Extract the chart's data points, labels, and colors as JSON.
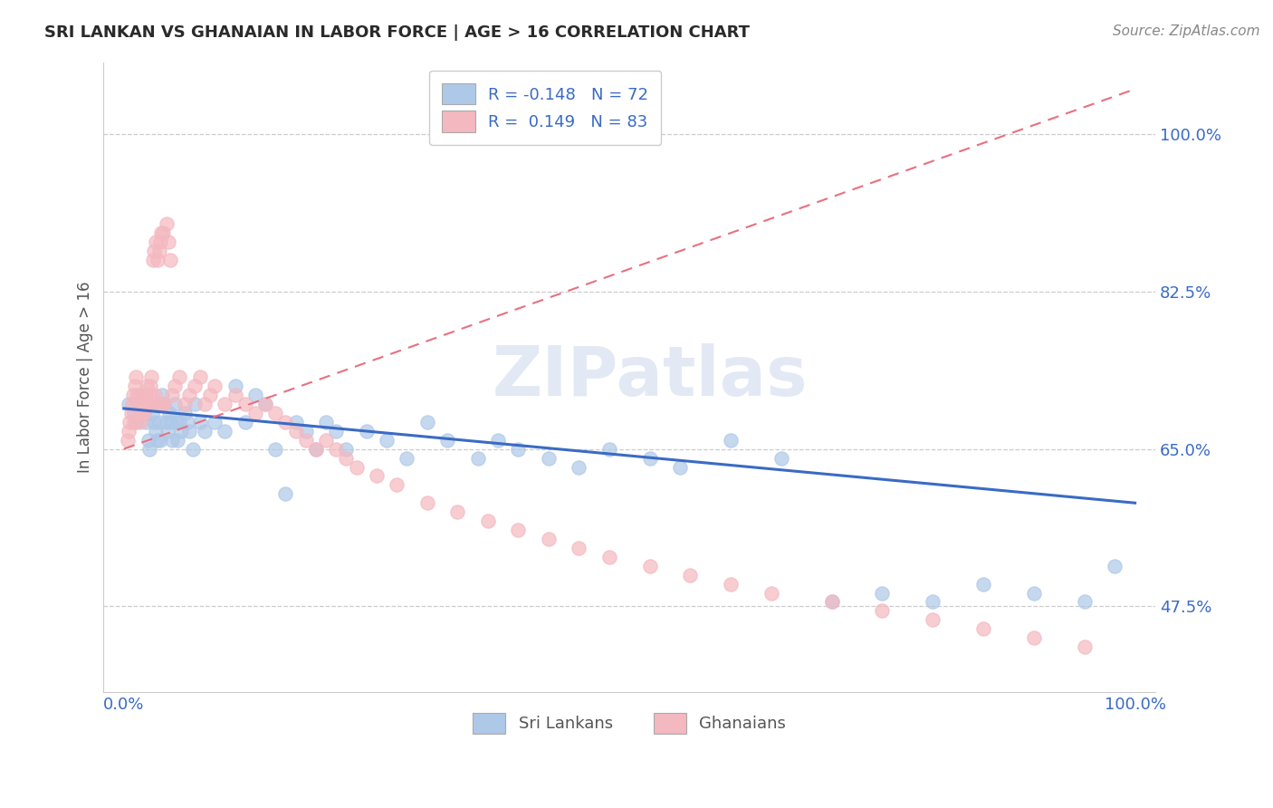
{
  "title": "SRI LANKAN VS GHANAIAN IN LABOR FORCE | AGE > 16 CORRELATION CHART",
  "source_text": "Source: ZipAtlas.com",
  "ylabel": "In Labor Force | Age > 16",
  "xlim": [
    -0.02,
    1.02
  ],
  "ylim": [
    0.38,
    1.08
  ],
  "sri_lankan_color": "#aec8e8",
  "ghanaian_color": "#f4b8c0",
  "sri_lankan_trend_color": "#3a6bc4",
  "ghanaian_trend_color": "#e87080",
  "watermark": "ZIPatlas",
  "sri_lankan_R": -0.148,
  "sri_lankan_N": 72,
  "ghanaian_R": 0.149,
  "ghanaian_N": 83,
  "yticks": [
    0.475,
    0.65,
    0.825,
    1.0
  ],
  "ytick_labels": [
    "47.5%",
    "65.0%",
    "82.5%",
    "100.0%"
  ],
  "xticks": [
    0.0,
    1.0
  ],
  "xtick_labels": [
    "0.0%",
    "100.0%"
  ],
  "sri_lankan_x": [
    0.005,
    0.01,
    0.012,
    0.015,
    0.018,
    0.02,
    0.022,
    0.024,
    0.025,
    0.027,
    0.028,
    0.03,
    0.032,
    0.033,
    0.034,
    0.035,
    0.036,
    0.038,
    0.04,
    0.042,
    0.043,
    0.045,
    0.047,
    0.048,
    0.05,
    0.052,
    0.053,
    0.055,
    0.057,
    0.06,
    0.063,
    0.065,
    0.068,
    0.07,
    0.075,
    0.08,
    0.09,
    0.1,
    0.11,
    0.12,
    0.13,
    0.14,
    0.15,
    0.16,
    0.17,
    0.18,
    0.19,
    0.2,
    0.21,
    0.22,
    0.24,
    0.26,
    0.28,
    0.3,
    0.32,
    0.35,
    0.37,
    0.39,
    0.42,
    0.45,
    0.48,
    0.52,
    0.55,
    0.6,
    0.65,
    0.7,
    0.75,
    0.8,
    0.85,
    0.9,
    0.95,
    0.98
  ],
  "sri_lankan_y": [
    0.7,
    0.69,
    0.68,
    0.71,
    0.7,
    0.69,
    0.68,
    0.66,
    0.65,
    0.7,
    0.69,
    0.68,
    0.67,
    0.66,
    0.7,
    0.68,
    0.66,
    0.71,
    0.7,
    0.68,
    0.67,
    0.69,
    0.68,
    0.66,
    0.7,
    0.68,
    0.66,
    0.68,
    0.67,
    0.69,
    0.68,
    0.67,
    0.65,
    0.7,
    0.68,
    0.67,
    0.68,
    0.67,
    0.72,
    0.68,
    0.71,
    0.7,
    0.65,
    0.6,
    0.68,
    0.67,
    0.65,
    0.68,
    0.67,
    0.65,
    0.67,
    0.66,
    0.64,
    0.68,
    0.66,
    0.64,
    0.66,
    0.65,
    0.64,
    0.63,
    0.65,
    0.64,
    0.63,
    0.66,
    0.64,
    0.48,
    0.49,
    0.48,
    0.5,
    0.49,
    0.48,
    0.52
  ],
  "ghanaian_x": [
    0.004,
    0.005,
    0.006,
    0.007,
    0.008,
    0.009,
    0.01,
    0.011,
    0.012,
    0.013,
    0.014,
    0.015,
    0.016,
    0.017,
    0.018,
    0.019,
    0.02,
    0.021,
    0.022,
    0.023,
    0.024,
    0.025,
    0.026,
    0.027,
    0.028,
    0.029,
    0.03,
    0.031,
    0.032,
    0.033,
    0.034,
    0.035,
    0.036,
    0.037,
    0.038,
    0.039,
    0.04,
    0.042,
    0.044,
    0.046,
    0.048,
    0.05,
    0.055,
    0.06,
    0.065,
    0.07,
    0.075,
    0.08,
    0.085,
    0.09,
    0.1,
    0.11,
    0.12,
    0.13,
    0.14,
    0.15,
    0.16,
    0.17,
    0.18,
    0.19,
    0.2,
    0.21,
    0.22,
    0.23,
    0.25,
    0.27,
    0.3,
    0.33,
    0.36,
    0.39,
    0.42,
    0.45,
    0.48,
    0.52,
    0.56,
    0.6,
    0.64,
    0.7,
    0.75,
    0.8,
    0.85,
    0.9,
    0.95
  ],
  "ghanaian_y": [
    0.66,
    0.67,
    0.68,
    0.69,
    0.7,
    0.71,
    0.68,
    0.72,
    0.73,
    0.71,
    0.7,
    0.69,
    0.68,
    0.69,
    0.7,
    0.71,
    0.69,
    0.7,
    0.71,
    0.72,
    0.7,
    0.71,
    0.72,
    0.73,
    0.7,
    0.86,
    0.87,
    0.71,
    0.88,
    0.86,
    0.7,
    0.87,
    0.88,
    0.89,
    0.7,
    0.89,
    0.7,
    0.9,
    0.88,
    0.86,
    0.71,
    0.72,
    0.73,
    0.7,
    0.71,
    0.72,
    0.73,
    0.7,
    0.71,
    0.72,
    0.7,
    0.71,
    0.7,
    0.69,
    0.7,
    0.69,
    0.68,
    0.67,
    0.66,
    0.65,
    0.66,
    0.65,
    0.64,
    0.63,
    0.62,
    0.61,
    0.59,
    0.58,
    0.57,
    0.56,
    0.55,
    0.54,
    0.53,
    0.52,
    0.51,
    0.5,
    0.49,
    0.48,
    0.47,
    0.46,
    0.45,
    0.44,
    0.43
  ]
}
